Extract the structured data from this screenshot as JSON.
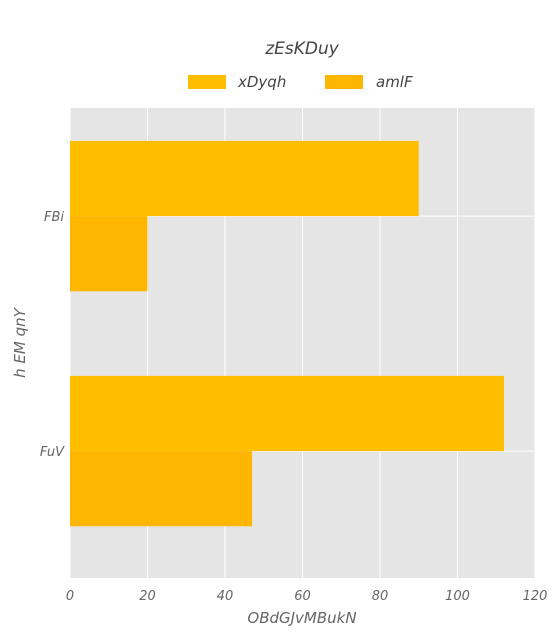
{
  "chart_data": {
    "type": "bar",
    "orientation": "horizontal",
    "title": "zEsKDuy",
    "xlabel": "OBdGJvMBukN",
    "ylabel": "h EM qnY",
    "categories": [
      "FBi",
      "FuV"
    ],
    "series": [
      {
        "name": "xDyqh",
        "values": [
          90,
          112
        ],
        "color": "#FFBF00"
      },
      {
        "name": "amlF",
        "values": [
          20,
          47
        ],
        "color": "#FFB600"
      }
    ],
    "xlim": [
      0,
      120
    ],
    "xticks": [
      "0",
      "20",
      "40",
      "60",
      "80",
      "100",
      "120"
    ],
    "grid": true,
    "legend_position": "top-center",
    "plot_background": "#E5E5E5",
    "grid_color": "#FFFFFF"
  }
}
